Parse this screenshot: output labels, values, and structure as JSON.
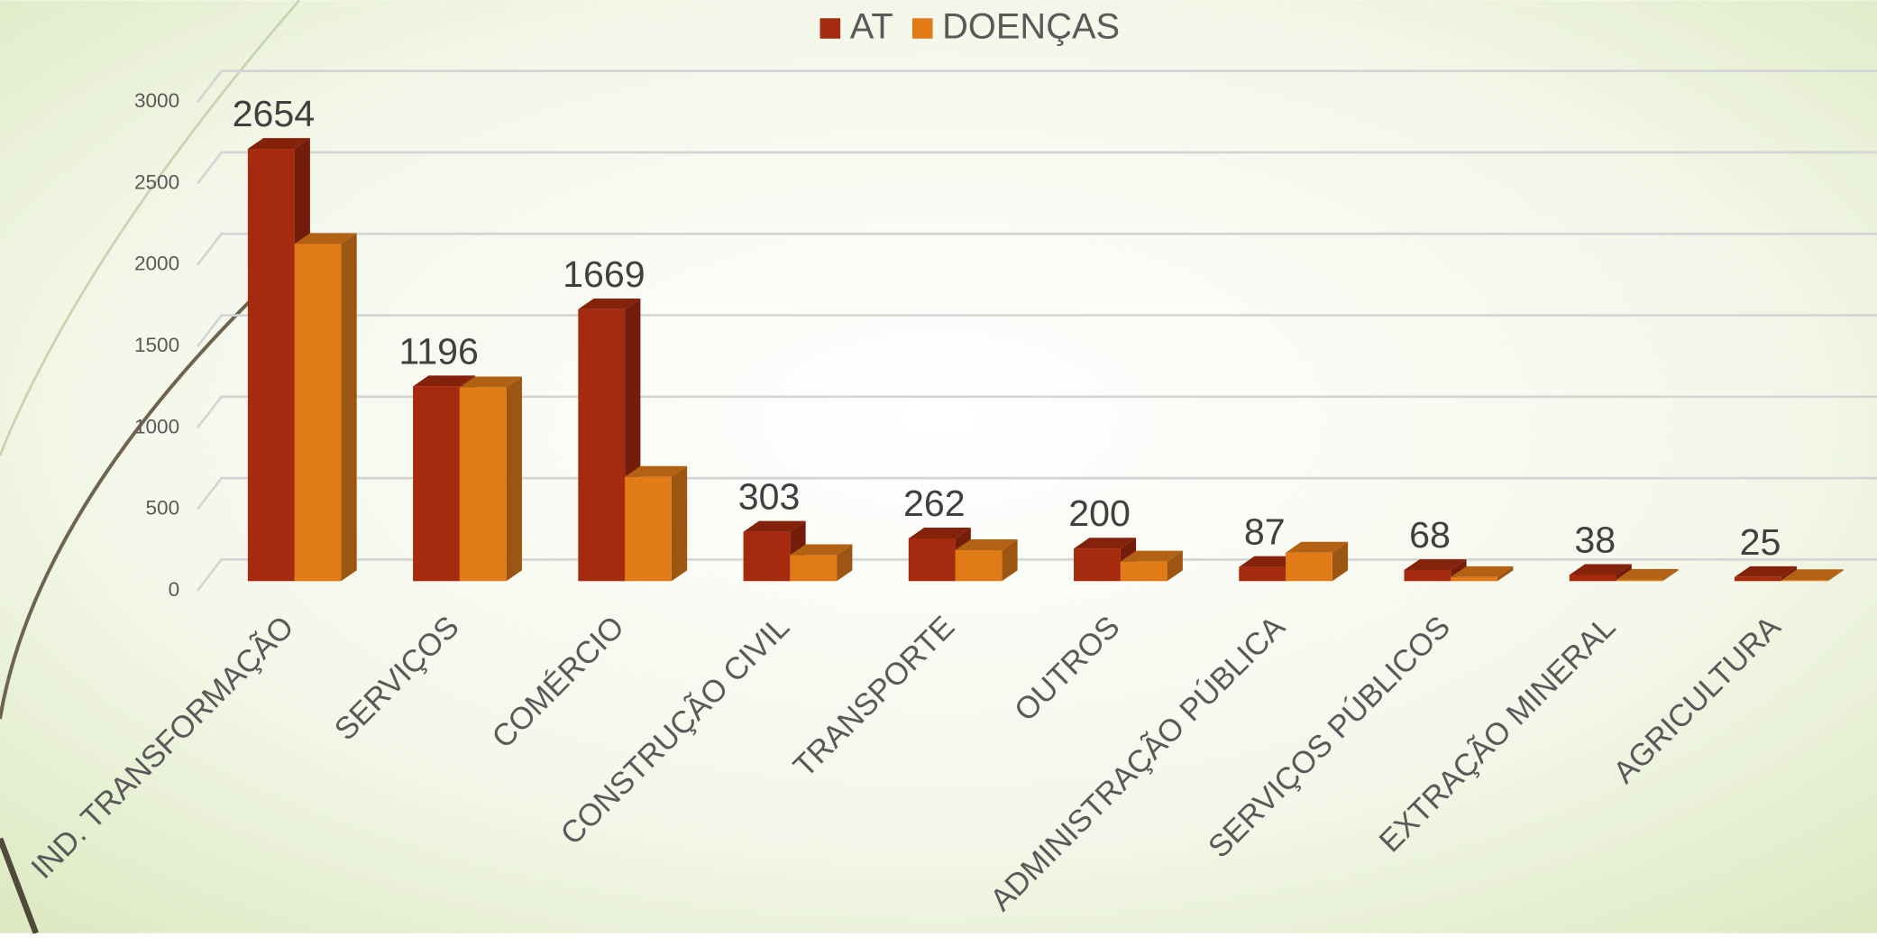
{
  "chart_data": {
    "type": "bar3d",
    "categories": [
      "IND. TRANSFORMAÇÃO",
      "SERVIÇOS",
      "COMÉRCIO",
      "CONSTRUÇÃO CIVIL",
      "TRANSPORTE",
      "OUTROS",
      "ADMINISTRAÇÃO PÚBLICA",
      "SERVIÇOS PÚBLICOS",
      "EXTRAÇÃO MINERAL",
      "AGRICULTURA"
    ],
    "series": [
      {
        "name": "AT",
        "color": "#a52a0e",
        "values": [
          2654,
          1196,
          1669,
          303,
          262,
          200,
          87,
          68,
          38,
          25
        ]
      },
      {
        "name": "DOENÇAS",
        "color": "#e07b18",
        "values": [
          2070,
          1190,
          640,
          160,
          190,
          120,
          175,
          25,
          8,
          6
        ]
      }
    ],
    "ylim": [
      0,
      3000
    ],
    "yticks": [
      0,
      500,
      1000,
      1500,
      2000,
      2500,
      3000
    ],
    "grid": true,
    "legend": "top"
  }
}
